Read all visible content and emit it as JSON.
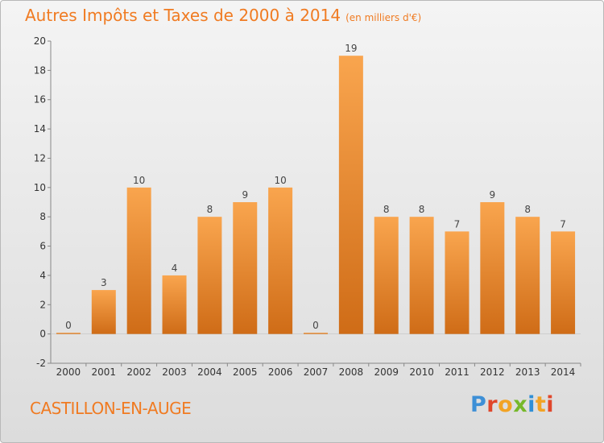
{
  "header": {
    "title": "Autres Impôts et Taxes de 2000 à 2014",
    "unit": "(en milliers d'€)"
  },
  "footer": {
    "location": "CASTILLON-EN-AUGE",
    "logo_letters": [
      "P",
      "r",
      "o",
      "x",
      "i",
      "t",
      "i"
    ],
    "logo_colors": [
      "#3d8fd6",
      "#e0472b",
      "#f2a324",
      "#76b82a",
      "#2f8fd6",
      "#f2a324",
      "#e0472b"
    ]
  },
  "chart_data": {
    "type": "bar",
    "title": "Autres Impôts et Taxes de 2000 à 2014",
    "categories": [
      "2000",
      "2001",
      "2002",
      "2003",
      "2004",
      "2005",
      "2006",
      "2007",
      "2008",
      "2009",
      "2010",
      "2011",
      "2012",
      "2013",
      "2014"
    ],
    "values": [
      0,
      3,
      10,
      4,
      8,
      9,
      10,
      0,
      19,
      8,
      8,
      7,
      9,
      8,
      7
    ],
    "ylim": [
      -2,
      20
    ],
    "yticks": [
      -2,
      0,
      2,
      4,
      6,
      8,
      10,
      12,
      14,
      16,
      18,
      20
    ],
    "grid": false,
    "bar_color_top": "#f9a54e",
    "bar_color_bottom": "#cf6c17"
  }
}
